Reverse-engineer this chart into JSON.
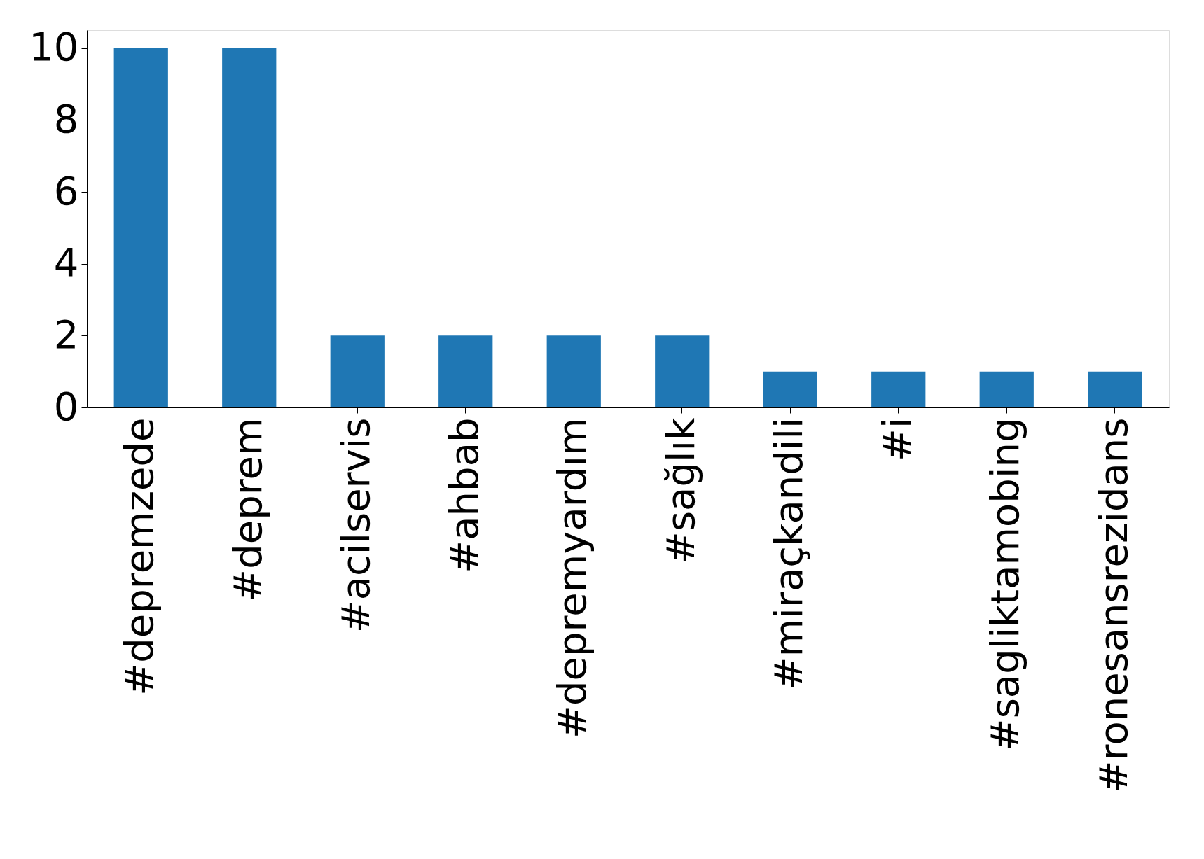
{
  "chart_data": {
    "type": "bar",
    "categories": [
      "#depremzede",
      "#deprem",
      "#acilservis",
      "#ahbab",
      "#depremyardım",
      "#sağlık",
      "#miraçkandili",
      "#i",
      "#sagliktamobing",
      "#ronesansrezidans"
    ],
    "values": [
      10,
      10,
      2,
      2,
      2,
      2,
      1,
      1,
      1,
      1
    ],
    "color": "#1f77b4",
    "ylim": [
      0,
      10.5
    ],
    "yticks": [
      0,
      2,
      4,
      6,
      8,
      10
    ],
    "grid": false
  }
}
